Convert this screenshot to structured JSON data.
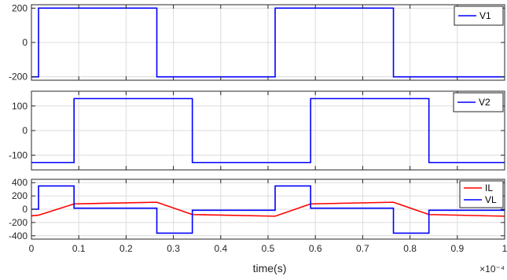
{
  "chart_data": [
    {
      "type": "line",
      "xlim": [
        0,
        1
      ],
      "ylim": [
        -220,
        220
      ],
      "yticks": [
        -200,
        0,
        200
      ],
      "grid": true,
      "legend_position": "top-right",
      "series": [
        {
          "name": "V1",
          "color": "#0000ff",
          "x": [
            0,
            0.015,
            0.015,
            0.265,
            0.265,
            0.515,
            0.515,
            0.765,
            0.765,
            1.0
          ],
          "y": [
            -200,
            -200,
            200,
            200,
            -200,
            -200,
            200,
            200,
            -200,
            -200
          ]
        }
      ]
    },
    {
      "type": "line",
      "xlim": [
        0,
        1
      ],
      "ylim": [
        -160,
        160
      ],
      "yticks": [
        -100,
        0,
        100
      ],
      "grid": true,
      "legend_position": "top-right",
      "series": [
        {
          "name": "V2",
          "color": "#0000ff",
          "x": [
            0,
            0.09,
            0.09,
            0.34,
            0.34,
            0.59,
            0.59,
            0.84,
            0.84,
            1.0
          ],
          "y": [
            -130,
            -130,
            130,
            130,
            -130,
            -130,
            130,
            130,
            -130,
            -130
          ]
        }
      ]
    },
    {
      "type": "line",
      "xlim": [
        0,
        1
      ],
      "ylim": [
        -450,
        450
      ],
      "yticks": [
        -400,
        -200,
        0,
        200,
        400
      ],
      "xticks": [
        0,
        0.1,
        0.2,
        0.3,
        0.4,
        0.5,
        0.6,
        0.7,
        0.8,
        0.9,
        1
      ],
      "xlabel": "time(s)",
      "xscale_label": "×10⁻⁴",
      "grid": true,
      "legend_position": "top-right",
      "series": [
        {
          "name": "IL",
          "color": "#ff0000",
          "x": [
            0,
            0.015,
            0.09,
            0.265,
            0.34,
            0.515,
            0.59,
            0.765,
            0.84,
            1.0
          ],
          "y": [
            -100,
            -90,
            80,
            105,
            -80,
            -105,
            80,
            105,
            -80,
            -105
          ]
        },
        {
          "name": "VL",
          "color": "#0000ff",
          "x": [
            0,
            0.015,
            0.015,
            0.09,
            0.09,
            0.265,
            0.265,
            0.34,
            0.34,
            0.515,
            0.515,
            0.59,
            0.59,
            0.765,
            0.765,
            0.84,
            0.84,
            1.0
          ],
          "y": [
            0,
            0,
            350,
            350,
            15,
            15,
            -360,
            -360,
            -15,
            -15,
            350,
            350,
            15,
            15,
            -360,
            -360,
            -15,
            -15
          ]
        }
      ]
    }
  ]
}
